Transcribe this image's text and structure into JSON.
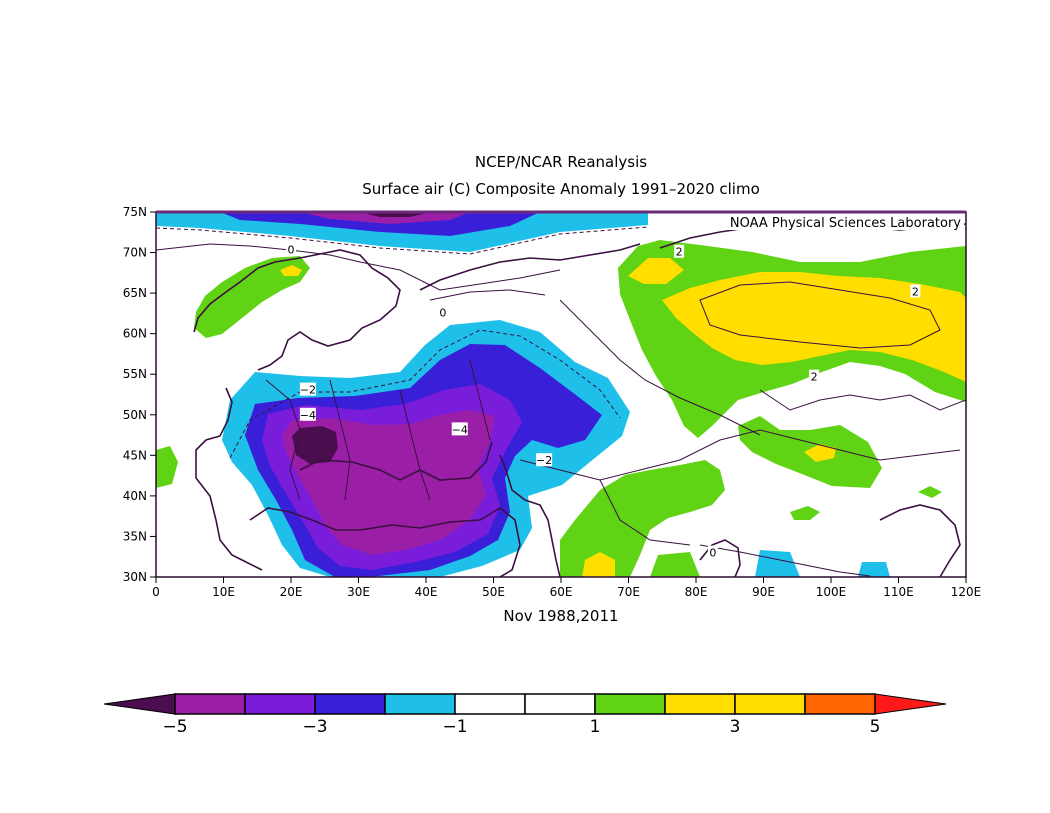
{
  "title": {
    "line1": "NCEP/NCAR Reanalysis",
    "line2": "Surface air (C) Composite Anomaly 1991–2020 climo"
  },
  "credit": "NOAA Physical Sciences Laboratory",
  "period_label": "Nov 1988,2011",
  "axes": {
    "lat_ticks": [
      "30N",
      "35N",
      "40N",
      "45N",
      "50N",
      "55N",
      "60N",
      "65N",
      "70N",
      "75N"
    ],
    "lon_ticks": [
      "0",
      "10E",
      "20E",
      "30E",
      "40E",
      "50E",
      "60E",
      "70E",
      "80E",
      "90E",
      "100E",
      "110E",
      "120E"
    ],
    "lat_range": [
      30,
      75
    ],
    "lon_range": [
      0,
      120
    ]
  },
  "contour_labels": [
    {
      "text": "0",
      "lon": 20,
      "lat": 70.4
    },
    {
      "text": "0",
      "lon": 42.5,
      "lat": 62.6
    },
    {
      "text": "0",
      "lon": 82.5,
      "lat": 33
    },
    {
      "text": "2",
      "lon": 77.5,
      "lat": 70.1
    },
    {
      "text": "2",
      "lon": 112.5,
      "lat": 65.2
    },
    {
      "text": "2",
      "lon": 97.5,
      "lat": 54.7
    },
    {
      "text": "−2",
      "lon": 22.5,
      "lat": 53.1
    },
    {
      "text": "−4",
      "lon": 22.5,
      "lat": 50
    },
    {
      "text": "−4",
      "lon": 45,
      "lat": 48.2
    },
    {
      "text": "−2",
      "lon": 57.5,
      "lat": 44.4
    }
  ],
  "colorbar": {
    "labels": [
      "−5",
      "−3",
      "−1",
      "1",
      "3",
      "5"
    ],
    "colors": [
      "#4a0d4e",
      "#9a1fa6",
      "#7a1ddb",
      "#3a1fd8",
      "#1ec0ea",
      "#ffffff",
      "#ffffff",
      "#5fd314",
      "#ffde00",
      "#ffde00",
      "#ff6600",
      "#ff1a1a"
    ]
  },
  "field_colors": {
    "lt_minus5": "#4a0d4e",
    "minus5_minus4": "#9a1fa6",
    "minus4_minus3": "#7a1ddb",
    "minus3_minus2": "#3a1fd8",
    "minus2_minus1": "#1ec0ea",
    "plus1_plus2": "#5fd314",
    "plus2_plus3": "#ffde00"
  }
}
